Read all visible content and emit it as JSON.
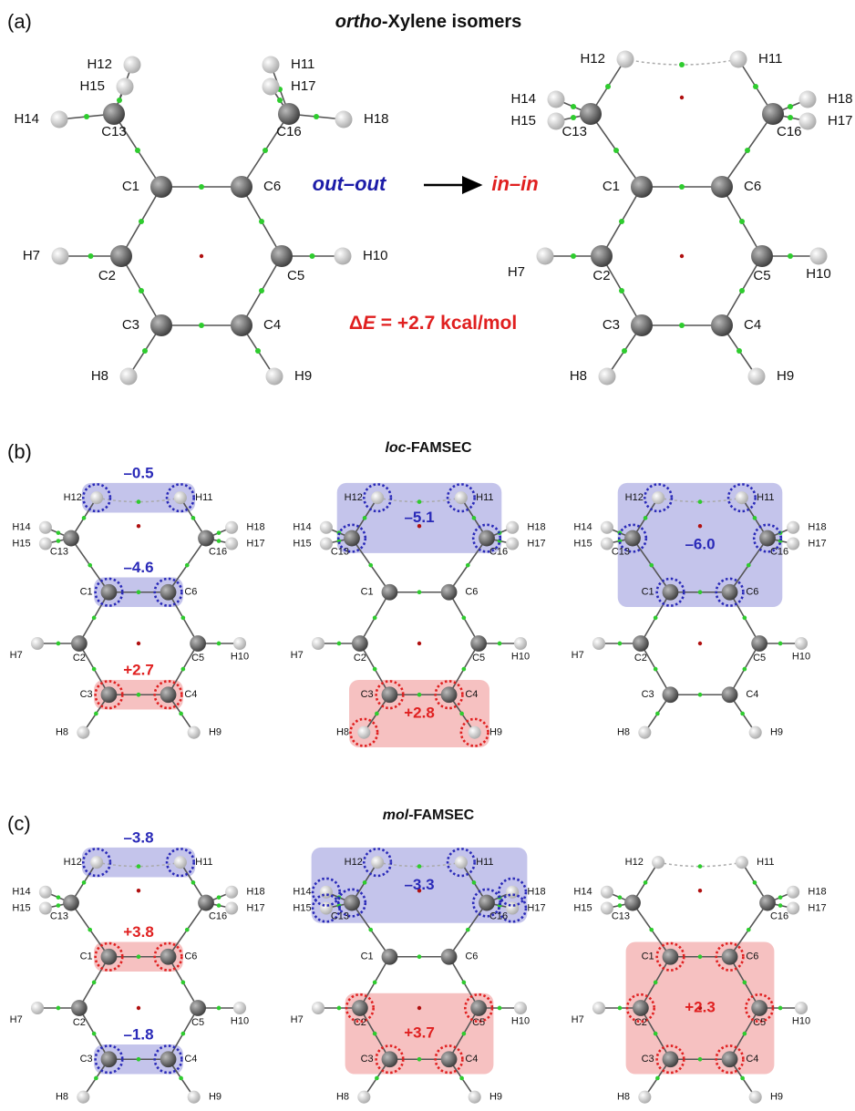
{
  "panels": [
    {
      "label": "(a)",
      "title": [
        "ortho",
        "-Xylene isomers"
      ],
      "molecules": [
        {
          "atoms": [
            "C1",
            "C2",
            "C3",
            "C4",
            "C5",
            "C6",
            "H7",
            "H8",
            "H9",
            "H10",
            "H11",
            "H12",
            "C13",
            "H14",
            "H15",
            "C16",
            "H17",
            "H18"
          ]
        },
        {
          "atoms": [
            "C1",
            "C2",
            "C3",
            "C4",
            "C5",
            "C6",
            "H7",
            "H8",
            "H9",
            "H10",
            "H11",
            "H12",
            "C13",
            "H14",
            "H15",
            "C16",
            "H17",
            "H18"
          ]
        }
      ],
      "reaction": {
        "from": "out–out",
        "to": "in–in",
        "energy": [
          "Δ",
          "E",
          " = +2.7 kcal/mol"
        ]
      }
    },
    {
      "label": "(b)",
      "title": [
        "loc",
        "-FAMSEC"
      ],
      "molecules": [
        {
          "atoms": [
            "C1",
            "C2",
            "C3",
            "C4",
            "C5",
            "C6",
            "H7",
            "H8",
            "H9",
            "H10",
            "H11",
            "H12",
            "C13",
            "H14",
            "H15",
            "C16",
            "H17",
            "H18"
          ],
          "groups": [
            {
              "label": "–0.5",
              "color": "#2a2ab8",
              "atoms": [
                10,
                11
              ]
            },
            {
              "label": "–4.6",
              "color": "#2a2ab8",
              "atoms": [
                0,
                5
              ]
            },
            {
              "label": "+2.7",
              "color": "#e02020",
              "atoms": [
                2,
                3
              ]
            }
          ]
        },
        {
          "atoms": [
            "C1",
            "C2",
            "C3",
            "C4",
            "C5",
            "C6",
            "H7",
            "H8",
            "H9",
            "H10",
            "H11",
            "H12",
            "C13",
            "H14",
            "H15",
            "C16",
            "H17",
            "H18"
          ],
          "groups": [
            {
              "label": "–5.1",
              "color": "#2a2ab8",
              "atoms": [
                10,
                11,
                12,
                15
              ]
            },
            {
              "label": "+2.8",
              "color": "#e02020",
              "atoms": [
                2,
                3,
                7,
                8
              ]
            }
          ]
        },
        {
          "atoms": [
            "C1",
            "C2",
            "C3",
            "C4",
            "C5",
            "C6",
            "H7",
            "H8",
            "H9",
            "H10",
            "H11",
            "H12",
            "C13",
            "H14",
            "H15",
            "C16",
            "H17",
            "H18"
          ],
          "groups": [
            {
              "label": "–6.0",
              "color": "#2a2ab8",
              "atoms": [
                10,
                11,
                12,
                15,
                0,
                5
              ]
            }
          ]
        }
      ]
    },
    {
      "label": "(c)",
      "title": [
        "mol",
        "-FAMSEC"
      ],
      "molecules": [
        {
          "atoms": [
            "C1",
            "C2",
            "C3",
            "C4",
            "C5",
            "C6",
            "H7",
            "H8",
            "H9",
            "H10",
            "H11",
            "H12",
            "C13",
            "H14",
            "H15",
            "C16",
            "H17",
            "H18"
          ],
          "groups": [
            {
              "label": "–3.8",
              "color": "#2a2ab8",
              "atoms": [
                10,
                11
              ]
            },
            {
              "label": "+3.8",
              "color": "#e02020",
              "atoms": [
                0,
                5
              ]
            },
            {
              "label": "–1.8",
              "color": "#2a2ab8",
              "atoms": [
                2,
                3
              ]
            }
          ]
        },
        {
          "atoms": [
            "C1",
            "C2",
            "C3",
            "C4",
            "C5",
            "C6",
            "H7",
            "H8",
            "H9",
            "H10",
            "H11",
            "H12",
            "C13",
            "H14",
            "H15",
            "C16",
            "H17",
            "H18"
          ],
          "groups": [
            {
              "label": "–3.3",
              "color": "#2a2ab8",
              "atoms": [
                10,
                11,
                12,
                13,
                14,
                15,
                16,
                17
              ]
            },
            {
              "label": "+3.7",
              "color": "#e02020",
              "atoms": [
                1,
                2,
                3,
                4
              ]
            }
          ]
        },
        {
          "atoms": [
            "C1",
            "C2",
            "C3",
            "C4",
            "C5",
            "C6",
            "H7",
            "H8",
            "H9",
            "H10",
            "H11",
            "H12",
            "C13",
            "H14",
            "H15",
            "C16",
            "H17",
            "H18"
          ],
          "groups": [
            {
              "label": "+2.3",
              "color": "#e02020",
              "atoms": [
                0,
                1,
                2,
                3,
                4,
                5
              ]
            }
          ]
        }
      ]
    }
  ]
}
